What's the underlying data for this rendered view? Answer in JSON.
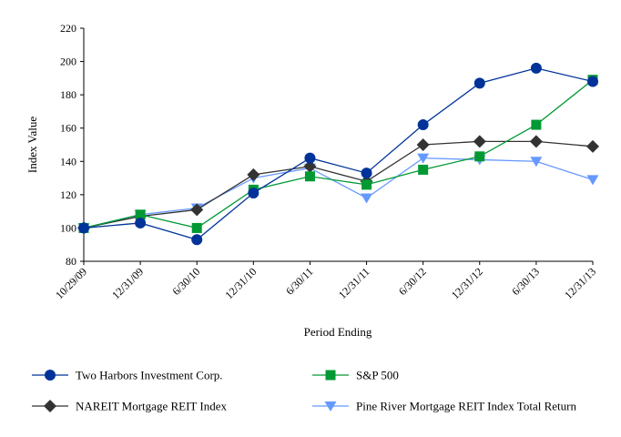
{
  "chart_data": {
    "type": "line",
    "xlabel": "Period Ending",
    "ylabel": "Index Value",
    "ylim": [
      80,
      220
    ],
    "yticks": [
      80,
      100,
      120,
      140,
      160,
      180,
      200,
      220
    ],
    "categories": [
      "10/29/09",
      "12/31/09",
      "6/30/10",
      "12/31/10",
      "6/30/11",
      "12/31/11",
      "6/30/12",
      "12/31/12",
      "6/30/13",
      "12/31/13"
    ],
    "grid": false,
    "legend_position": "bottom",
    "series": [
      {
        "name": "Two Harbors Investment Corp.",
        "color": "#003399",
        "marker": "circle",
        "values": [
          100,
          103,
          93,
          121,
          142,
          133,
          162,
          187,
          196,
          188
        ]
      },
      {
        "name": "S&P 500",
        "color": "#009933",
        "marker": "square",
        "values": [
          100,
          108,
          100,
          123,
          131,
          126,
          135,
          143,
          162,
          189
        ]
      },
      {
        "name": "NAREIT Mortgage REIT Index",
        "color": "#333333",
        "marker": "diamond",
        "values": [
          100,
          107,
          111,
          132,
          137,
          128,
          150,
          152,
          152,
          149
        ]
      },
      {
        "name": "Pine River Mortgage REIT Index Total Return",
        "color": "#6699ff",
        "marker": "triangle-down",
        "values": [
          100,
          108,
          112,
          130,
          136,
          118,
          142,
          141,
          140,
          129
        ]
      }
    ]
  }
}
